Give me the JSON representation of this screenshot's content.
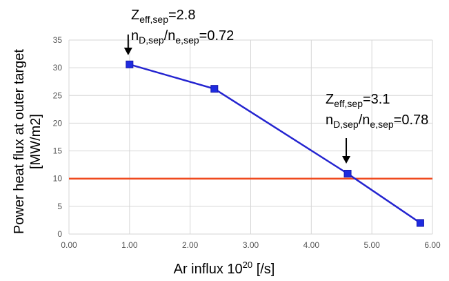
{
  "chart_data": {
    "type": "line",
    "xlabel": {
      "main": "Ar influx 10",
      "sup": "20",
      "unit": " [/s]"
    },
    "ylabel": [
      "Power heat flux at outer target",
      "[MW/m2]"
    ],
    "xlim": [
      0,
      6
    ],
    "ylim": [
      0,
      35
    ],
    "x_ticks": [
      "0.00",
      "1.00",
      "2.00",
      "3.00",
      "4.00",
      "5.00",
      "6.00"
    ],
    "y_ticks": [
      "0",
      "5",
      "10",
      "15",
      "20",
      "25",
      "30",
      "35"
    ],
    "grid": true,
    "series": [
      {
        "x": [
          1.0,
          2.4,
          4.6,
          5.8
        ],
        "y": [
          30.6,
          26.2,
          10.9,
          2.0
        ],
        "color": "#2424d0",
        "marker_color": "#1e2be0"
      }
    ],
    "reference_line": {
      "y": 10,
      "color": "#ef4a1e"
    },
    "annotations": [
      {
        "point_x": 1.0,
        "line1": {
          "base": "Z",
          "sub": "eff,sep",
          "value": "=2.8"
        },
        "line2": {
          "a": "n",
          "a_sub": "D,sep",
          "slash": "/",
          "b": "n",
          "b_sub": "e,sep",
          "value": "=0.72"
        }
      },
      {
        "point_x": 4.6,
        "line1": {
          "base": "Z",
          "sub": "eff,sep",
          "value": "=3.1"
        },
        "line2": {
          "a": "n",
          "a_sub": "D,sep",
          "slash": "/",
          "b": "n",
          "b_sub": "e,sep",
          "value": "=0.78"
        }
      }
    ]
  }
}
